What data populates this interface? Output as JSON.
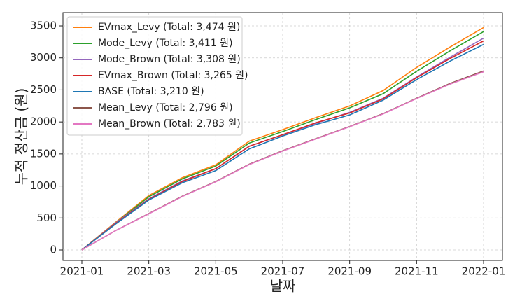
{
  "chart_data": {
    "type": "line",
    "x_label": "날짜",
    "y_label": "누적 정산금 (원)",
    "x": [
      "2021-01",
      "2021-02",
      "2021-03",
      "2021-04",
      "2021-05",
      "2021-06",
      "2021-07",
      "2021-08",
      "2021-09",
      "2021-10",
      "2021-11",
      "2021-12",
      "2022-01"
    ],
    "xlim": [
      "2021-01",
      "2022-01"
    ],
    "xticks": [
      "2021-01",
      "2021-03",
      "2021-05",
      "2021-07",
      "2021-09",
      "2021-11",
      "2022-01"
    ],
    "ylim": [
      -164,
      3708
    ],
    "yticks": [
      0,
      500,
      1000,
      1500,
      2000,
      2500,
      3000,
      3500
    ],
    "grid": true,
    "legend": "upper-left",
    "series": [
      {
        "name": "EVmax_Levy (Total: 3,474 원)",
        "color": "#ff7f0e",
        "values": [
          0,
          430,
          850,
          1130,
          1330,
          1700,
          1880,
          2070,
          2250,
          2490,
          2850,
          3170,
          3474
        ]
      },
      {
        "name": "Mode_Levy (Total: 3,411 원)",
        "color": "#2ca02c",
        "values": [
          0,
          420,
          830,
          1110,
          1310,
          1670,
          1850,
          2040,
          2220,
          2440,
          2790,
          3110,
          3411
        ]
      },
      {
        "name": "Mode_Brown (Total: 3,308 원)",
        "color": "#9467bd",
        "values": [
          0,
          420,
          800,
          1080,
          1270,
          1620,
          1800,
          1980,
          2150,
          2370,
          2700,
          3010,
          3308
        ]
      },
      {
        "name": "EVmax_Brown (Total: 3,265 원)",
        "color": "#d62728",
        "values": [
          0,
          410,
          790,
          1070,
          1270,
          1620,
          1800,
          1990,
          2140,
          2360,
          2690,
          2990,
          3265
        ]
      },
      {
        "name": "BASE (Total: 3,210 원)",
        "color": "#1f77b4",
        "values": [
          0,
          400,
          780,
          1050,
          1240,
          1580,
          1780,
          1960,
          2110,
          2340,
          2660,
          2950,
          3210
        ]
      },
      {
        "name": "Mean_Levy (Total: 2,796 원)",
        "color": "#8c564b",
        "values": [
          0,
          300,
          570,
          840,
          1070,
          1340,
          1550,
          1740,
          1930,
          2130,
          2370,
          2600,
          2796
        ]
      },
      {
        "name": "Mean_Brown (Total: 2,783 원)",
        "color": "#e377c2",
        "values": [
          0,
          300,
          565,
          835,
          1065,
          1335,
          1545,
          1735,
          1925,
          2125,
          2365,
          2590,
          2783
        ]
      }
    ]
  }
}
